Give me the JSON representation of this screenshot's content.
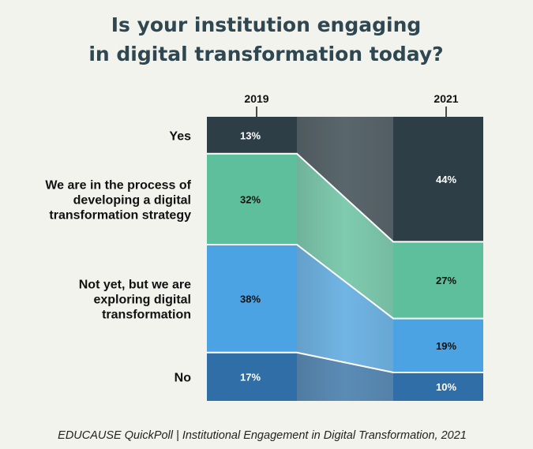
{
  "chart_data": {
    "type": "bar",
    "subtype": "stacked-100-percent-slope",
    "title_lines": [
      "Is your institution engaging",
      "in digital transformation today?"
    ],
    "categories": [
      "2019",
      "2021"
    ],
    "series": [
      {
        "name": "No",
        "values": [
          17,
          10
        ],
        "color": "#2f6ea6"
      },
      {
        "name": "Not yet, but we are exploring digital transformation",
        "label_lines": [
          "Not yet, but we are",
          "exploring digital",
          "transformation"
        ],
        "values": [
          38,
          19
        ],
        "color": "#4ba3e3"
      },
      {
        "name": "We are in the process of developing a digital transformation strategy",
        "label_lines": [
          "We are in the process of",
          "developing a digital",
          "transformation strategy"
        ],
        "values": [
          32,
          27
        ],
        "color": "#5ebf9d"
      },
      {
        "name": "Yes",
        "values": [
          13,
          44
        ],
        "color": "#2d3e46"
      }
    ],
    "value_labels": [
      [
        "17%",
        "10%"
      ],
      [
        "38%",
        "19%"
      ],
      [
        "32%",
        "27%"
      ],
      [
        "13%",
        "44%"
      ]
    ],
    "ylim": [
      0,
      100
    ],
    "grid": false,
    "legend": "left"
  },
  "source": "EDUCAUSE QuickPoll | Institutional Engagement in Digital Transformation, 2021"
}
